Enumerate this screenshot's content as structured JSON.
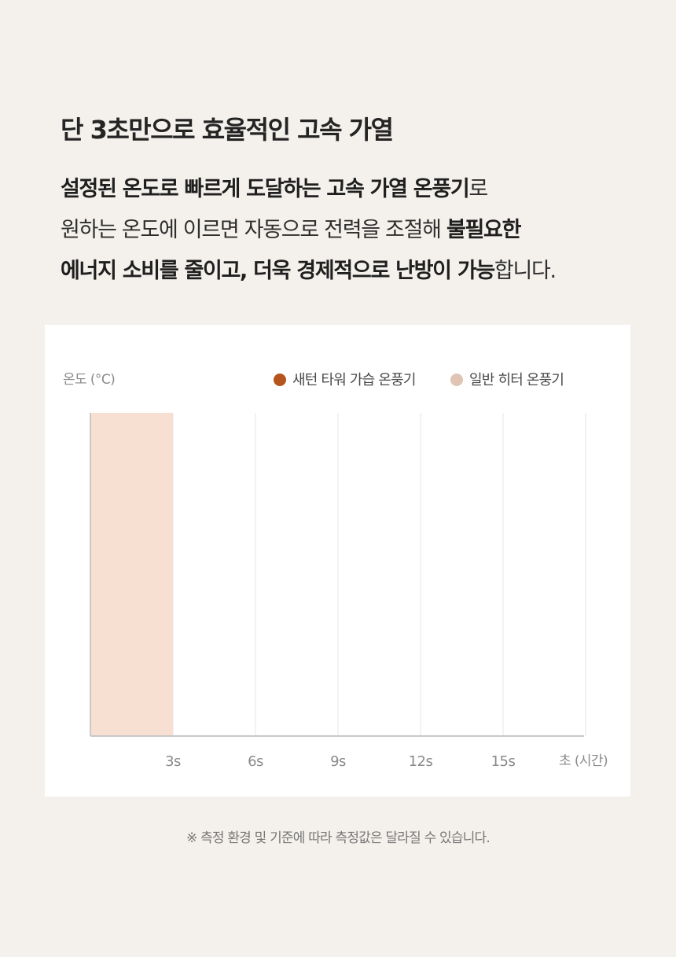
{
  "headline": "단 3초만으로 효율적인 고속 가열",
  "description": {
    "line1_bold": "설정된 온도로 빠르게 도달하는 고속 가열 온풍기",
    "line1_rest": "로",
    "line2_plain": "원하는 온도에 이르면 자동으로 전력을 조절해 ",
    "line2_bold": "불필요한",
    "line3_bold": "에너지 소비를 줄이고, 더욱 경제적으로 난방이 가능",
    "line3_rest": "합니다."
  },
  "footnote": "※ 측정 환경 및 기준에 따라 측정값은 달라질 수 있습니다.",
  "chart_data": {
    "type": "bar",
    "ylabel": "온도 (°C)",
    "xlabel": "초 (시간)",
    "x_ticks": [
      "3s",
      "6s",
      "9s",
      "12s",
      "15s"
    ],
    "xlim": [
      0,
      18
    ],
    "legend_position": "top-right",
    "grid": "vertical",
    "series": [
      {
        "name": "새턴 타워 가습 온풍기",
        "color": "#b5541c",
        "values": []
      },
      {
        "name": "일반 히터 온풍기",
        "color": "#e0c4b4",
        "values": []
      }
    ],
    "highlight_band": {
      "x_start": 0,
      "x_end": 3,
      "color": "#f7dfd2"
    }
  }
}
